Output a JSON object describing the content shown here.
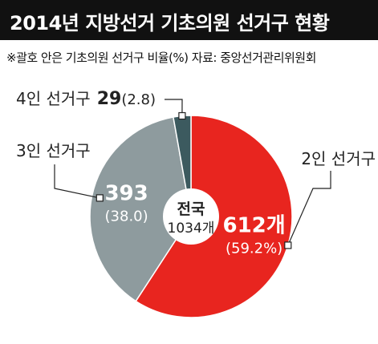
{
  "title": "2014년 지방선거 기초의원 선거구 현황",
  "subtitle": "※괄호 안은 기초의원 선거구 비율(%) 자료: 중앙선거관리위원회",
  "center_label": {
    "line1": "전국",
    "line2": "1034개"
  },
  "chart_data": {
    "type": "pie",
    "title": "2014년 지방선거 기초의원 선거구 현황",
    "total": 1034,
    "slices": [
      {
        "category": "2인 선거구",
        "value": 612,
        "percent": 59.2,
        "value_label": "612개",
        "percent_label": "(59.2%)",
        "color": "#e8251f"
      },
      {
        "category": "3인 선거구",
        "value": 393,
        "percent": 38.0,
        "value_label": "393",
        "percent_label": "(38.0)",
        "color": "#8e9b9e"
      },
      {
        "category": "4인 선거구",
        "value": 29,
        "percent": 2.8,
        "value_label": "29",
        "percent_label": "(2.8)",
        "color": "#3c5a5f"
      }
    ]
  }
}
